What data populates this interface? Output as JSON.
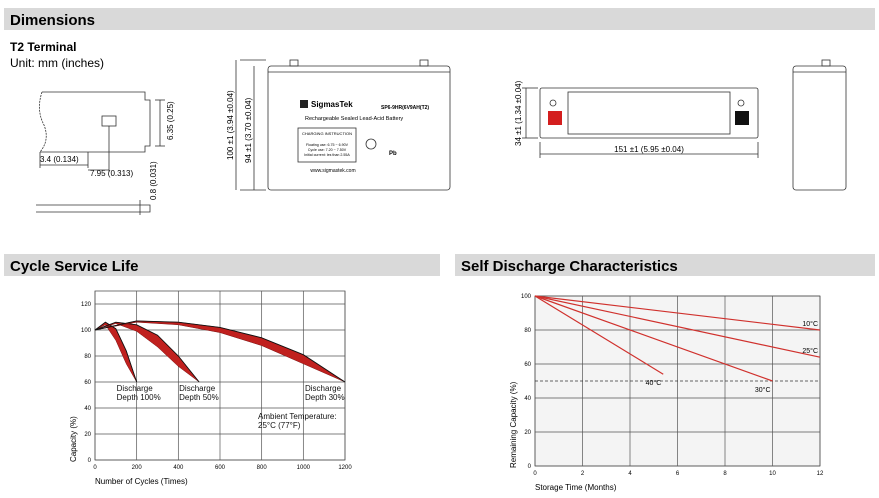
{
  "header": {
    "dimensions": "Dimensions",
    "terminal": "T2 Terminal",
    "unit": "Unit: mm (inches)"
  },
  "terminal_dims": [
    "6.35 (0.25)",
    "3.4 (0.134)",
    "7.95 (0.313)",
    "0.8 (0.031)"
  ],
  "front_view": {
    "height_total": "100 ±1 (3.94 ±0.04)",
    "height_case": "94 ±1 (3.70 ±0.04)",
    "brand": "SigmasTek",
    "model": "SP6-9HR(6V9AH(T2)",
    "description": "Rechargeable Sealed Lead-Acid Battery",
    "instruction_title": "CHARGING INSTRUCTION",
    "instructions": [
      "Floating use: 6.75 ~ 6.90V",
      "Cycle use: 7.20 ~ 7.50V",
      "Initial current: les than 2.55A"
    ],
    "website": "www.sigmastek.com",
    "pb": "Pb"
  },
  "top_view": {
    "height": "34 ±1 (1.34 ±0.04)",
    "length": "151 ±1 (5.95 ±0.04)"
  },
  "sections": [
    "Cycle Service Life",
    "Self Discharge Characteristics"
  ],
  "chart_data": [
    {
      "type": "band",
      "xlabel": "Number of Cycles (Times)",
      "ylabel": "Capacity (%)",
      "xlim": [
        0,
        1200
      ],
      "ylim": [
        0,
        130
      ],
      "xticks": [
        0,
        200,
        400,
        600,
        800,
        1000,
        1200
      ],
      "yticks": [
        0,
        20,
        40,
        60,
        80,
        100,
        120
      ],
      "grid": true,
      "annotation": "Ambient Temperature:\n25°C (77°F)",
      "series": [
        {
          "name": "Discharge\nDepth 100%",
          "color": "#c0201e",
          "x": [
            0,
            50,
            100,
            150,
            200
          ],
          "values": [
            100,
            106,
            101,
            84,
            60
          ],
          "lower": [
            100,
            104,
            92,
            74,
            60
          ]
        },
        {
          "name": "Discharge\nDepth 50%",
          "color": "#c0201e",
          "x": [
            0,
            100,
            200,
            300,
            400,
            500
          ],
          "values": [
            100,
            106,
            104,
            96,
            80,
            60
          ],
          "lower": [
            100,
            105,
            99,
            87,
            72,
            60
          ]
        },
        {
          "name": "Discharge\nDepth 30%",
          "color": "#c0201e",
          "x": [
            0,
            200,
            400,
            600,
            800,
            1000,
            1200
          ],
          "values": [
            100,
            107,
            106,
            102,
            94,
            81,
            60
          ],
          "lower": [
            100,
            106,
            104,
            98,
            88,
            74,
            60
          ]
        }
      ]
    },
    {
      "type": "line",
      "xlabel": "Storage Time (Months)",
      "ylabel": "Remaining Capacity (%)",
      "xlim": [
        0,
        12
      ],
      "ylim": [
        0,
        100
      ],
      "xticks": [
        0,
        2,
        4,
        6,
        8,
        10,
        12
      ],
      "yticks": [
        0,
        20,
        40,
        60,
        80,
        100
      ],
      "grid": true,
      "reference_line": 50,
      "series": [
        {
          "name": "10°C",
          "color": "#d0312d",
          "x": [
            0,
            12
          ],
          "values": [
            100,
            80
          ]
        },
        {
          "name": "25°C",
          "color": "#d0312d",
          "x": [
            0,
            12
          ],
          "values": [
            100,
            64
          ]
        },
        {
          "name": "40°C",
          "color": "#d0312d",
          "x": [
            0,
            5.4
          ],
          "values": [
            100,
            54
          ]
        },
        {
          "name": "30°C",
          "color": "#d0312d",
          "x": [
            0,
            10
          ],
          "values": [
            100,
            50
          ]
        }
      ]
    }
  ]
}
